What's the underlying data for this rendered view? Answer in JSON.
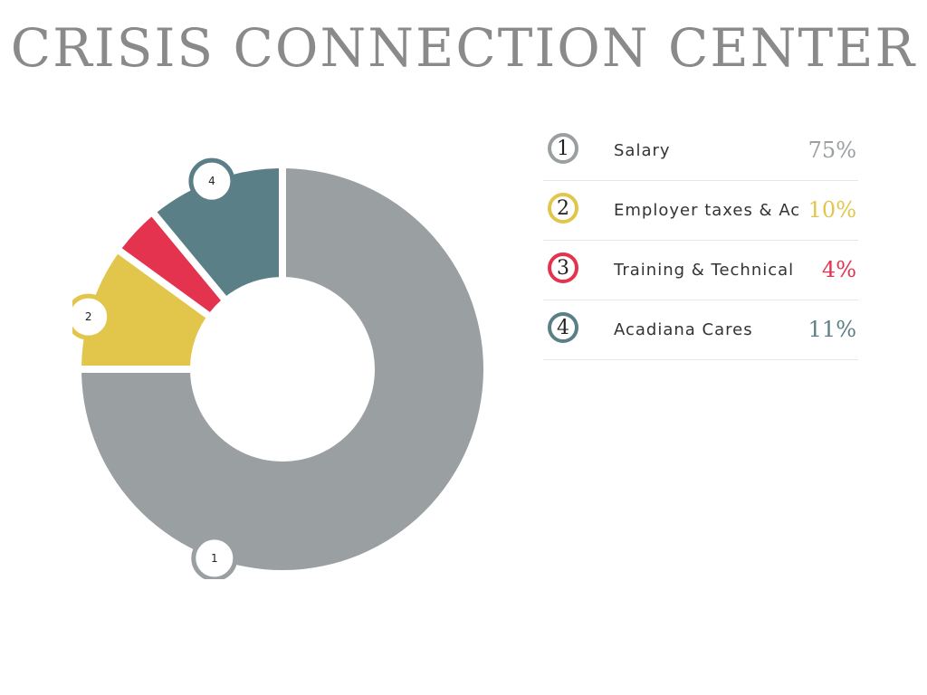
{
  "title": "CRISIS CONNECTION CENTER",
  "colors": {
    "background": "#ffffff",
    "title": "#8a8a8a"
  },
  "chart_data": {
    "type": "pie",
    "subtype": "donut",
    "slices": [
      {
        "number": "1",
        "label": "Salary",
        "value": 75,
        "display": "75%",
        "color": "#9a9fa2"
      },
      {
        "number": "2",
        "label": "Employer taxes & Acadiana Cares",
        "value": 10,
        "display": "10%",
        "color": "#e2c64c"
      },
      {
        "number": "3",
        "label": "Training & Technical Assistance",
        "value": 4,
        "display": "4%",
        "color": "#e3334e"
      },
      {
        "number": "4",
        "label": "Acadiana Cares",
        "value": 11,
        "display": "11%",
        "color": "#5b7f87"
      }
    ],
    "callout_slices": [
      0,
      1,
      3
    ],
    "legend_placement": "right"
  }
}
